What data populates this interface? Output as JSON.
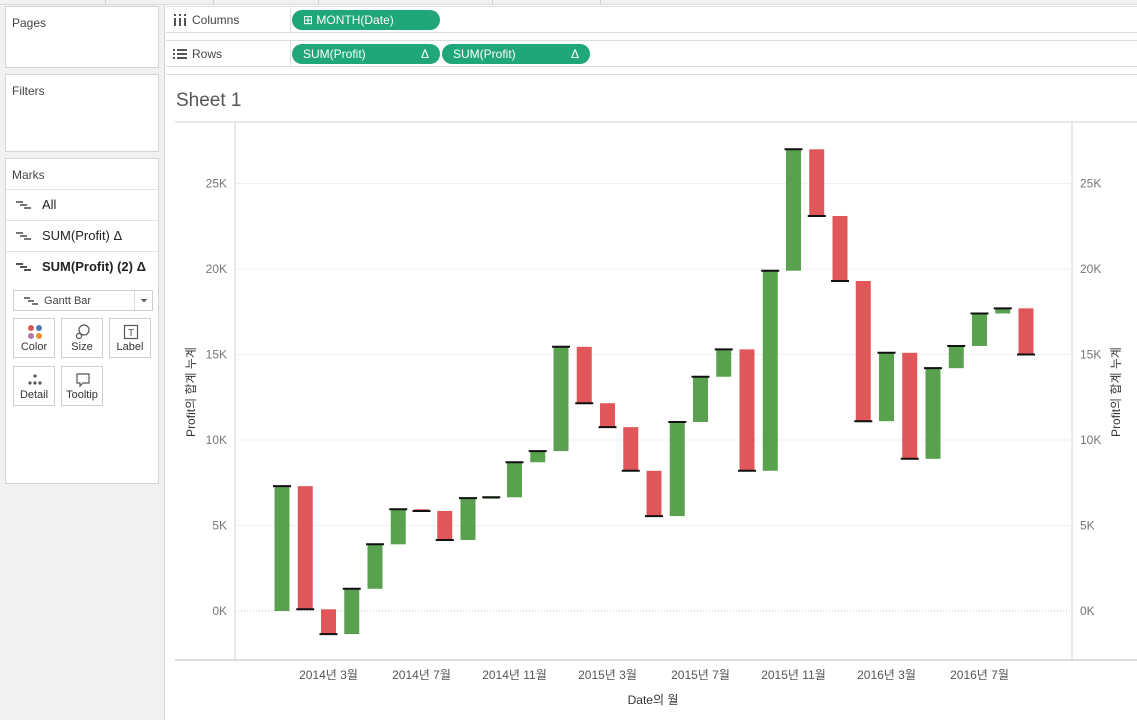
{
  "sidebar": {
    "pages_title": "Pages",
    "filters_title": "Filters",
    "marks_title": "Marks",
    "marks_items": [
      {
        "label": "All",
        "bold": false
      },
      {
        "label": "SUM(Profit) Δ",
        "bold": false
      },
      {
        "label": "SUM(Profit) (2) Δ",
        "bold": true
      }
    ],
    "mark_type": "Gantt Bar",
    "mark_buttons": [
      {
        "label": "Color",
        "icon": "color-dots-icon"
      },
      {
        "label": "Size",
        "icon": "size-icon"
      },
      {
        "label": "Label",
        "icon": "label-icon"
      },
      {
        "label": "Detail",
        "icon": "detail-dots-icon"
      },
      {
        "label": "Tooltip",
        "icon": "tooltip-icon"
      }
    ]
  },
  "shelves": {
    "columns_label": "Columns",
    "rows_label": "Rows",
    "columns_pills": [
      {
        "text": "MONTH(Date)",
        "prefix": "⊞"
      }
    ],
    "rows_pills": [
      {
        "text": "SUM(Profit)",
        "delta": "Δ"
      },
      {
        "text": "SUM(Profit)",
        "delta": "Δ"
      }
    ]
  },
  "sheet": {
    "title": "Sheet 1"
  },
  "colors": {
    "positive": "#59a14f",
    "negative": "#e15759",
    "pill": "#1fa67a"
  },
  "chart_data": {
    "type": "waterfall-gantt",
    "xlabel": "Date의 월",
    "ylabel_left": "Profit의 합계 누계",
    "ylabel_right": "Profit의 합계 누계",
    "ylim": [
      -3000,
      28000
    ],
    "yticks": [
      0,
      5000,
      10000,
      15000,
      20000,
      25000
    ],
    "ytick_labels": [
      "0K",
      "5K",
      "10K",
      "15K",
      "20K",
      "25K"
    ],
    "x_tick_labels": [
      {
        "month_index": 2,
        "label": "2014년 3월"
      },
      {
        "month_index": 6,
        "label": "2014년 7월"
      },
      {
        "month_index": 10,
        "label": "2014년 11월"
      },
      {
        "month_index": 14,
        "label": "2015년 3월"
      },
      {
        "month_index": 18,
        "label": "2015년 7월"
      },
      {
        "month_index": 22,
        "label": "2015년 11월"
      },
      {
        "month_index": 26,
        "label": "2016년 3월"
      },
      {
        "month_index": 30,
        "label": "2016년 7월"
      }
    ],
    "months": [
      "2014-01",
      "2014-02",
      "2014-03",
      "2014-04",
      "2014-05",
      "2014-06",
      "2014-07",
      "2014-08",
      "2014-09",
      "2014-10",
      "2014-11",
      "2014-12",
      "2015-01",
      "2015-02",
      "2015-03",
      "2015-04",
      "2015-05",
      "2015-06",
      "2015-07",
      "2015-08",
      "2015-09",
      "2015-10",
      "2015-11",
      "2015-12",
      "2016-01",
      "2016-02",
      "2016-03",
      "2016-04",
      "2016-05",
      "2016-06",
      "2016-07",
      "2016-08",
      "2016-09"
    ],
    "monthly_profit": [
      7300,
      -7200,
      -1450,
      2650,
      2600,
      2050,
      -100,
      -1700,
      2450,
      50,
      2050,
      650,
      6100,
      -3300,
      -1400,
      -2550,
      -2650,
      5500,
      2650,
      1600,
      -7100,
      11700,
      7100,
      -3900,
      -3800,
      -8200,
      4000,
      -6200,
      5300,
      1300,
      1900,
      300,
      -2700
    ],
    "running_total": [
      7300,
      100,
      -1350,
      1300,
      3900,
      5950,
      5850,
      4150,
      6600,
      6650,
      8700,
      9350,
      15450,
      12150,
      10750,
      8200,
      5550,
      11050,
      13700,
      15300,
      8200,
      19900,
      27000,
      23100,
      19300,
      11100,
      15100,
      8900,
      14200,
      15500,
      17400,
      17700,
      15000
    ]
  }
}
